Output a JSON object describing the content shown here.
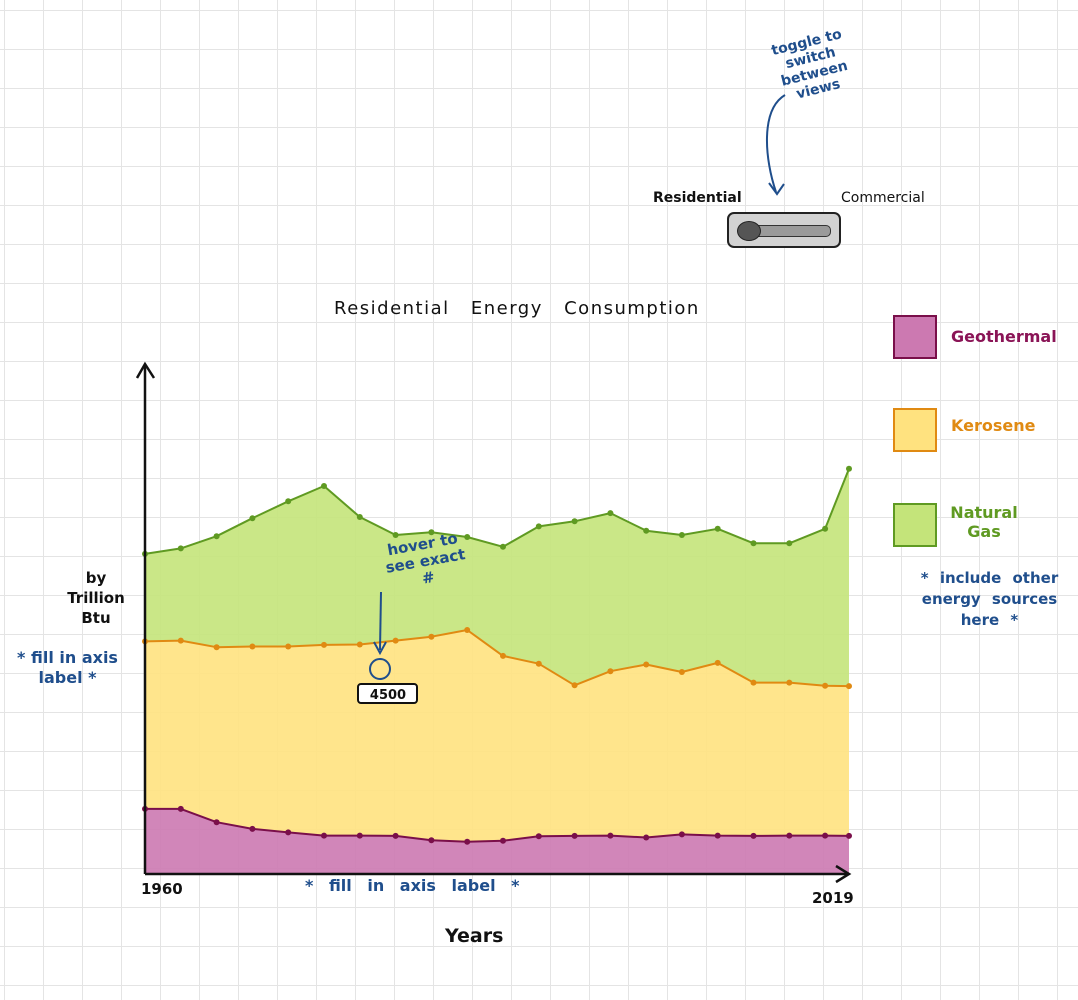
{
  "chart_data": {
    "type": "area",
    "stacked": true,
    "title": "Residential Energy Consumption",
    "xlabel": "Years",
    "ylabel": "by Trillion Btu",
    "x": [
      1960,
      1963,
      1966,
      1969,
      1972,
      1975,
      1978,
      1981,
      1984,
      1987,
      1990,
      1993,
      1996,
      1999,
      2002,
      2005,
      2008,
      2011,
      2014,
      2017,
      2019
    ],
    "series": [
      {
        "name": "Geothermal",
        "color": "#cc79b1",
        "line": "#7a0f4a",
        "values": [
          1660,
          1660,
          1320,
          1150,
          1060,
          980,
          980,
          970,
          860,
          820,
          850,
          960,
          970,
          980,
          930,
          1010,
          980,
          970,
          980,
          980,
          970
        ]
      },
      {
        "name": "Kerosene",
        "color": "#ffe27f",
        "line": "#e08a12",
        "values": [
          4270,
          4290,
          4460,
          4650,
          4740,
          4860,
          4870,
          4980,
          5190,
          5400,
          4710,
          4400,
          3840,
          4190,
          4410,
          4140,
          4400,
          3910,
          3900,
          3820,
          3820
        ]
      },
      {
        "name": "Natural Gas",
        "color": "#c4e47a",
        "line": "#5f9a22",
        "values": [
          2230,
          2350,
          2830,
          3270,
          3700,
          4050,
          3250,
          2690,
          2660,
          2370,
          2780,
          3500,
          4180,
          4030,
          3410,
          3490,
          3420,
          3550,
          3550,
          4000,
          5540
        ]
      }
    ],
    "x_tick_labels": [
      "1960",
      "2019"
    ],
    "ylim": [
      0,
      13000
    ],
    "xlim": [
      1960,
      2019
    ],
    "grid": true,
    "legend": "right",
    "hover_value": "4500"
  },
  "notes": {
    "toggle": "toggle to switch between views",
    "hover": "hover to see exact #",
    "axis_y": "* fill in axis label *",
    "axis_x": "* fill in axis label *",
    "legend": "* include other energy sources here *"
  },
  "toggle": {
    "left_label": "Residential",
    "right_label": "Commercial",
    "state": "Residential"
  }
}
